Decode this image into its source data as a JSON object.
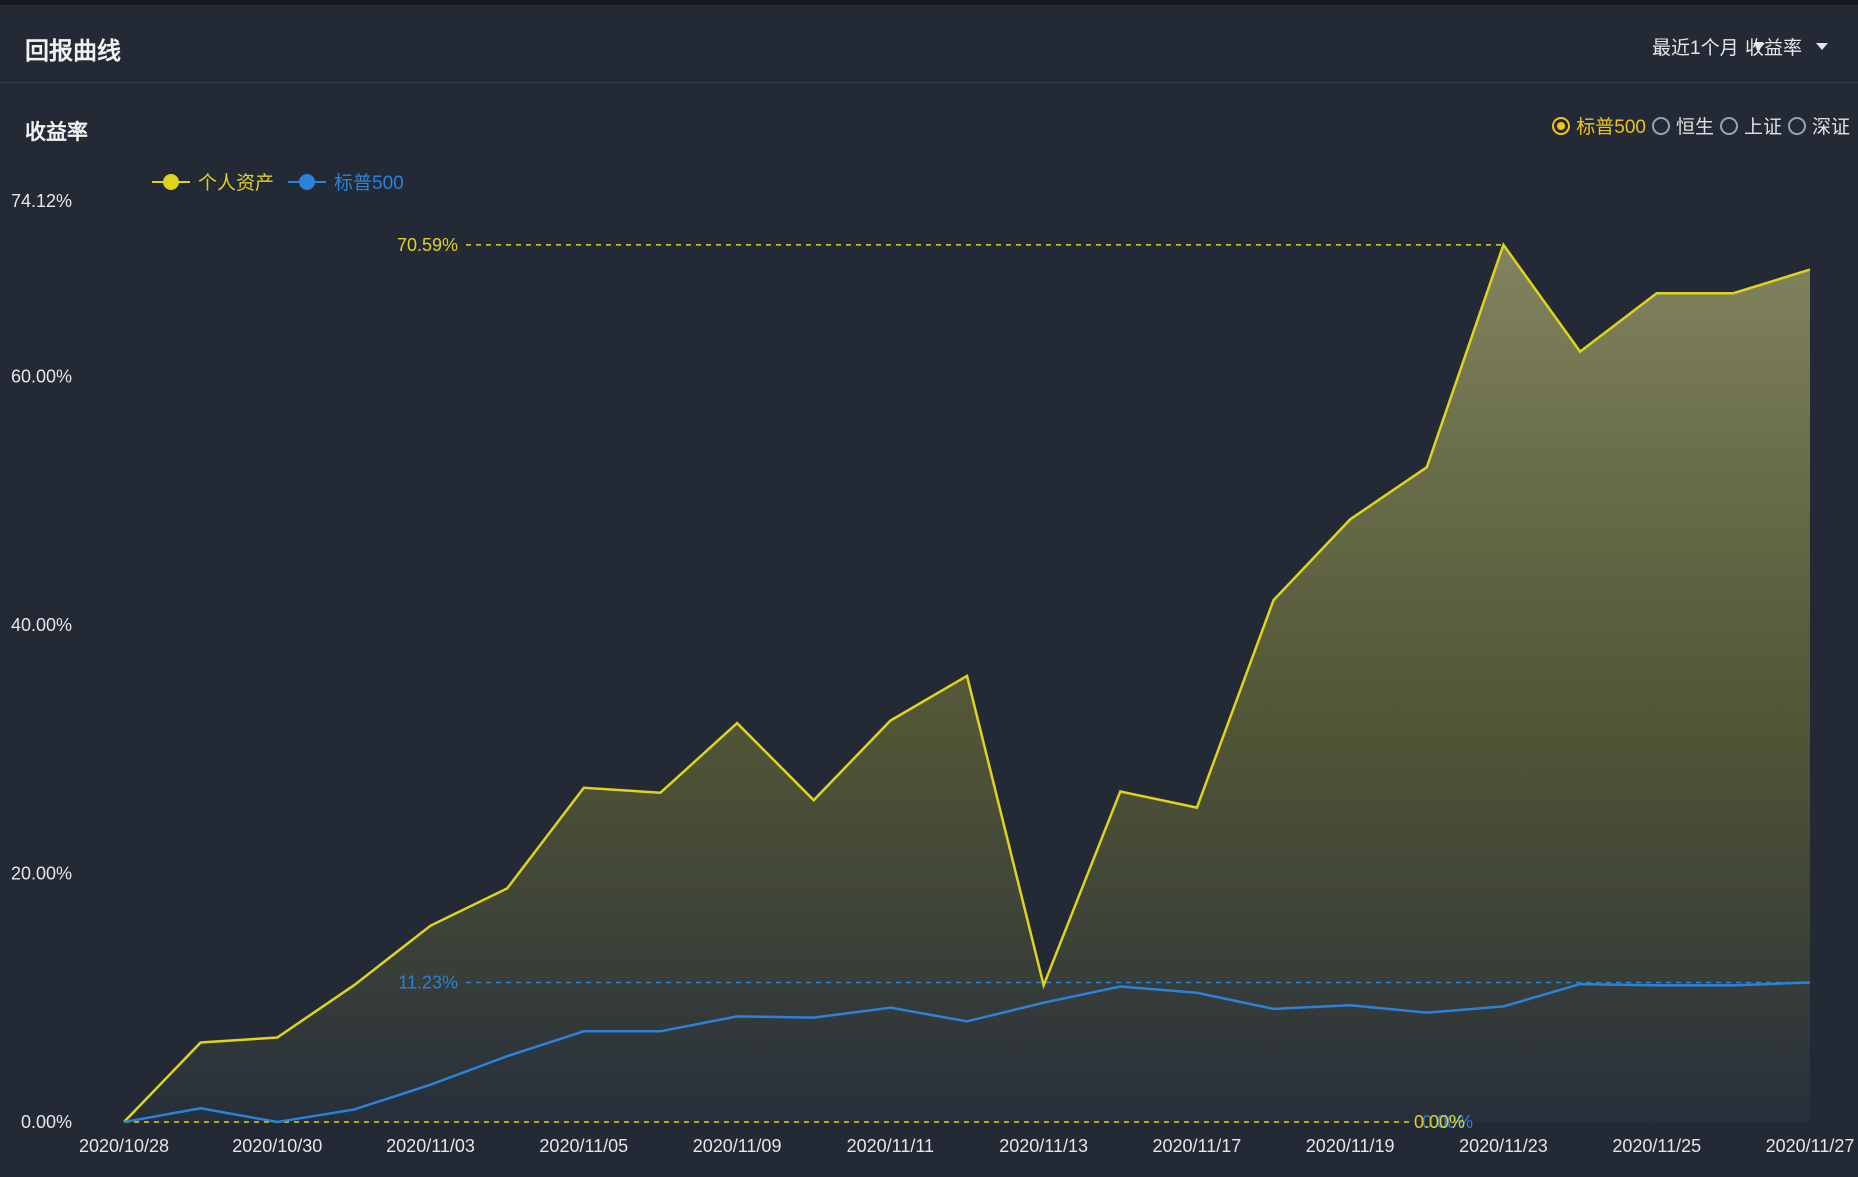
{
  "header": {
    "title": "回报曲线",
    "period_dropdown": "最近1个月",
    "metric_dropdown": "收益率"
  },
  "section": {
    "title": "收益率"
  },
  "benchmarks": {
    "selected": "标普500",
    "options": [
      "标普500",
      "恒生",
      "上证",
      "深证"
    ]
  },
  "colors": {
    "personal": "#e0d41a",
    "benchmark": "#2b82d9",
    "background": "#232a35",
    "selected_radio": "#f2c40f"
  },
  "chart_data": {
    "type": "area",
    "ylim": [
      0,
      74.12
    ],
    "y_ticks": [
      "0.00%",
      "20.00%",
      "40.00%",
      "60.00%",
      "74.12%"
    ],
    "y_tick_values": [
      0,
      20,
      40,
      60,
      74.12
    ],
    "x_tick_labels": [
      "2020/10/28",
      "2020/10/30",
      "2020/11/03",
      "2020/11/05",
      "2020/11/09",
      "2020/11/11",
      "2020/11/13",
      "2020/11/17",
      "2020/11/19",
      "2020/11/23",
      "2020/11/25",
      "2020/11/27"
    ],
    "series": [
      {
        "name": "个人资产",
        "values": [
          0,
          6.4,
          6.8,
          11.0,
          15.8,
          18.8,
          26.9,
          26.5,
          32.1,
          25.9,
          32.3,
          35.9,
          11.0,
          26.6,
          25.3,
          42.0,
          48.5,
          52.7,
          70.59,
          62.0,
          66.7,
          66.7,
          68.6
        ]
      },
      {
        "name": "标普500",
        "values": [
          0,
          1.1,
          0,
          1.0,
          3.0,
          5.3,
          7.3,
          7.3,
          8.5,
          8.4,
          9.2,
          8.1,
          9.6,
          10.9,
          10.4,
          9.1,
          9.4,
          8.8,
          9.3,
          11.1,
          11.0,
          11.0,
          11.23
        ]
      }
    ],
    "max_marker": {
      "series": "个人资产",
      "label": "70.59%"
    },
    "last_marker": {
      "series": "标普500",
      "label": "11.23%"
    },
    "zero_marker_label": "0.00%",
    "legend_position": "top-left"
  }
}
